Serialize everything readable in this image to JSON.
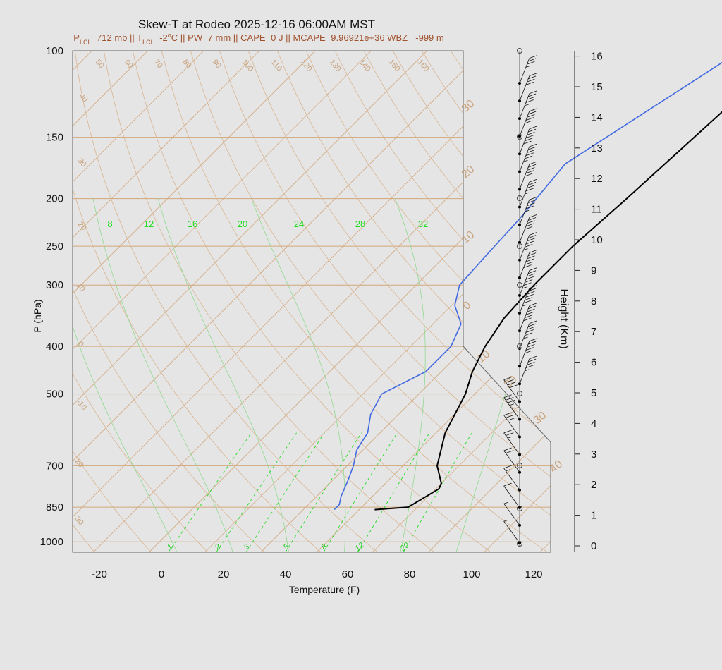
{
  "chart_data": {
    "type": "line",
    "title": "Skew-T at Rodeo 2025-12-16 06:00AM MST",
    "subtitle": {
      "p_lcl_sub": "LCL",
      "p_lcl_value": "=712 mb || T",
      "t_lcl_sub": "LCL",
      "t_lcl_value": "=-2",
      "deg": "o",
      "rest": "C || PW=7 mm || CAPE=0 J || MCAPE=9.96921e+36 WBZ= -999 m"
    },
    "xlabel": "Temperature (F)",
    "ylabel": "P (hPa)",
    "y2label": "Height (Km)",
    "xlim": [
      -28,
      125
    ],
    "ylim": [
      1050,
      100
    ],
    "x_ticks": [
      "-20",
      "0",
      "20",
      "40",
      "60",
      "80",
      "100",
      "120"
    ],
    "p_ticks": [
      "100",
      "150",
      "200",
      "250",
      "300",
      "400",
      "500",
      "700",
      "850",
      "1000"
    ],
    "height_ticks": [
      "0",
      "1",
      "2",
      "3",
      "4",
      "5",
      "6",
      "7",
      "8",
      "9",
      "10",
      "11",
      "12",
      "13",
      "14",
      "15",
      "16"
    ],
    "mixing_ratio_top_labels": [
      "8",
      "12",
      "16",
      "20",
      "24",
      "28",
      "32"
    ],
    "mixing_ratio_bottom_labels": [
      "1",
      "2",
      "3",
      "5",
      "8",
      "12",
      "20"
    ],
    "theta_labels": [
      "50",
      "60",
      "70",
      "80",
      "90",
      "100",
      "110",
      "120",
      "130",
      "140",
      "150",
      "160"
    ],
    "dry_adiabat_left_labels": [
      "40",
      "30",
      "20",
      "10",
      "0",
      "-10",
      "20",
      "30"
    ],
    "isotherm_right_labels": [
      "30",
      "20",
      "10",
      "0",
      "10",
      "20",
      "30",
      "40"
    ],
    "series": [
      {
        "name": "",
        "color": "#000000",
        "points": [
          [
            860,
            55
          ],
          [
            850,
            65
          ],
          [
            780,
            69
          ],
          [
            760,
            68
          ],
          [
            700,
            61
          ],
          [
            600,
            53
          ],
          [
            500,
            47
          ],
          [
            450,
            42
          ],
          [
            400,
            38
          ],
          [
            350,
            35
          ],
          [
            300,
            34
          ],
          [
            250,
            34
          ],
          [
            200,
            36
          ],
          [
            150,
            38
          ],
          [
            130,
            39
          ],
          [
            100,
            45
          ]
        ]
      },
      {
        "name": "",
        "color": "#4169e1",
        "points": [
          [
            860,
            42
          ],
          [
            840,
            42
          ],
          [
            810,
            40
          ],
          [
            790,
            39
          ],
          [
            750,
            37
          ],
          [
            700,
            34
          ],
          [
            650,
            30
          ],
          [
            600,
            28
          ],
          [
            550,
            23
          ],
          [
            500,
            20
          ],
          [
            450,
            27
          ],
          [
            400,
            27
          ],
          [
            360,
            23
          ],
          [
            330,
            15
          ],
          [
            300,
            10
          ],
          [
            260,
            9
          ],
          [
            220,
            8
          ],
          [
            170,
            5
          ],
          [
            100,
            25
          ]
        ]
      }
    ],
    "wind_barb_speeds_kt": [
      5,
      5,
      10,
      15,
      20,
      25,
      30,
      35,
      40,
      45,
      50,
      55,
      60,
      65,
      65,
      60,
      55,
      50,
      45,
      45,
      50,
      55,
      60,
      50,
      45,
      40,
      35
    ]
  },
  "colors": {
    "background": "#e5e5e5",
    "temperature": "#000000",
    "dewpoint": "#4169e1",
    "mixing_ratio": "#22dd22",
    "adiabat": "#d9b48f",
    "grid": "#d2a679"
  }
}
